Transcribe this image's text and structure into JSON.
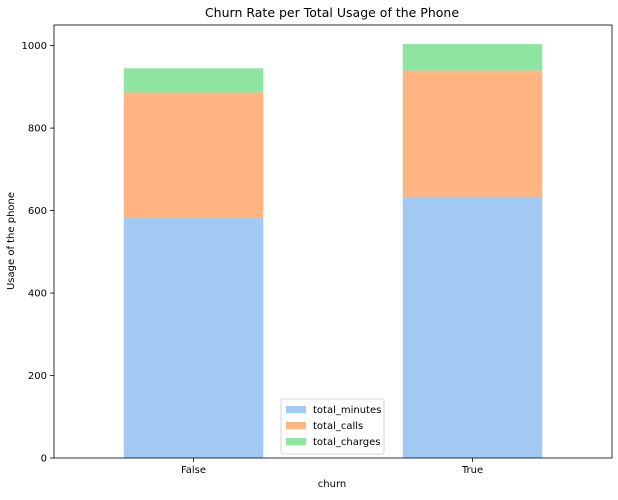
{
  "chart_data": {
    "type": "bar",
    "stacked": true,
    "title": "Churn Rate per Total Usage of the Phone",
    "xlabel": "churn",
    "ylabel": "Usage of the phone",
    "categories": [
      "False",
      "True"
    ],
    "series": [
      {
        "name": "total_minutes",
        "values": [
          582,
          634
        ],
        "color": "#a1c9f4"
      },
      {
        "name": "total_calls",
        "values": [
          305,
          306
        ],
        "color": "#ffb482"
      },
      {
        "name": "total_charges",
        "values": [
          58,
          64
        ],
        "color": "#8de5a1"
      }
    ],
    "ylim": [
      0,
      1050
    ],
    "yticks": [
      0,
      200,
      400,
      600,
      800,
      1000
    ],
    "grid": false,
    "legend_position": "bottom-center"
  }
}
